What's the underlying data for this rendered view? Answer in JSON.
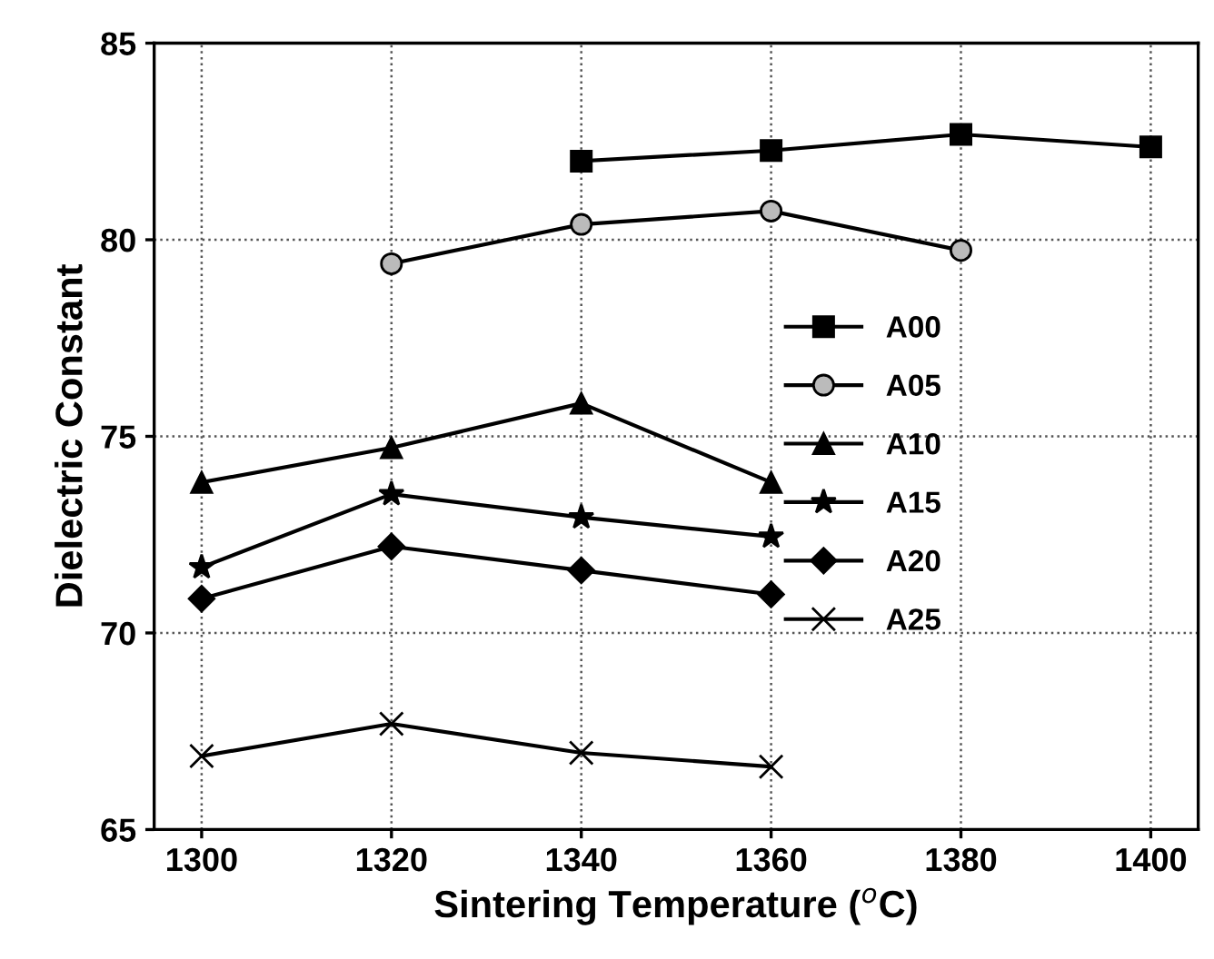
{
  "chart_data": {
    "type": "line",
    "xlabel": "Sintering Temperature ($^{o}$C)",
    "ylabel": "Dielectric Constant",
    "xlim": [
      1295,
      1405
    ],
    "xticks": [
      1300,
      1320,
      1340,
      1360,
      1380,
      1400
    ],
    "ylim": [
      65,
      85
    ],
    "yticks": [
      65,
      70,
      75,
      80,
      85
    ],
    "grid": true,
    "legend": "right",
    "line_style": "solid",
    "series": [
      {
        "name": "A00",
        "color": "#000000",
        "marker": "square",
        "x": [
          1340,
          1360,
          1380,
          1400
        ],
        "values": [
          82.0,
          82.27,
          82.68,
          82.36
        ]
      },
      {
        "name": "A05",
        "color": "#000000",
        "marker": "circle",
        "x": [
          1320,
          1340,
          1360,
          1380
        ],
        "values": [
          79.39,
          80.39,
          80.73,
          79.73
        ]
      },
      {
        "name": "A10",
        "color": "#000000",
        "marker": "triangle",
        "x": [
          1300,
          1320,
          1340,
          1360
        ],
        "values": [
          73.83,
          74.71,
          75.84,
          73.83
        ]
      },
      {
        "name": "A15",
        "color": "#000000",
        "marker": "star",
        "x": [
          1300,
          1320,
          1340,
          1360
        ],
        "values": [
          71.67,
          73.53,
          72.94,
          72.45
        ]
      },
      {
        "name": "A20",
        "color": "#000000",
        "marker": "diamond",
        "x": [
          1300,
          1320,
          1340,
          1360
        ],
        "values": [
          70.87,
          72.2,
          71.59,
          70.98
        ]
      },
      {
        "name": "A25",
        "color": "#000000",
        "marker": "cross",
        "x": [
          1300,
          1320,
          1340,
          1360
        ],
        "values": [
          66.87,
          67.69,
          66.95,
          66.6
        ]
      }
    ]
  }
}
